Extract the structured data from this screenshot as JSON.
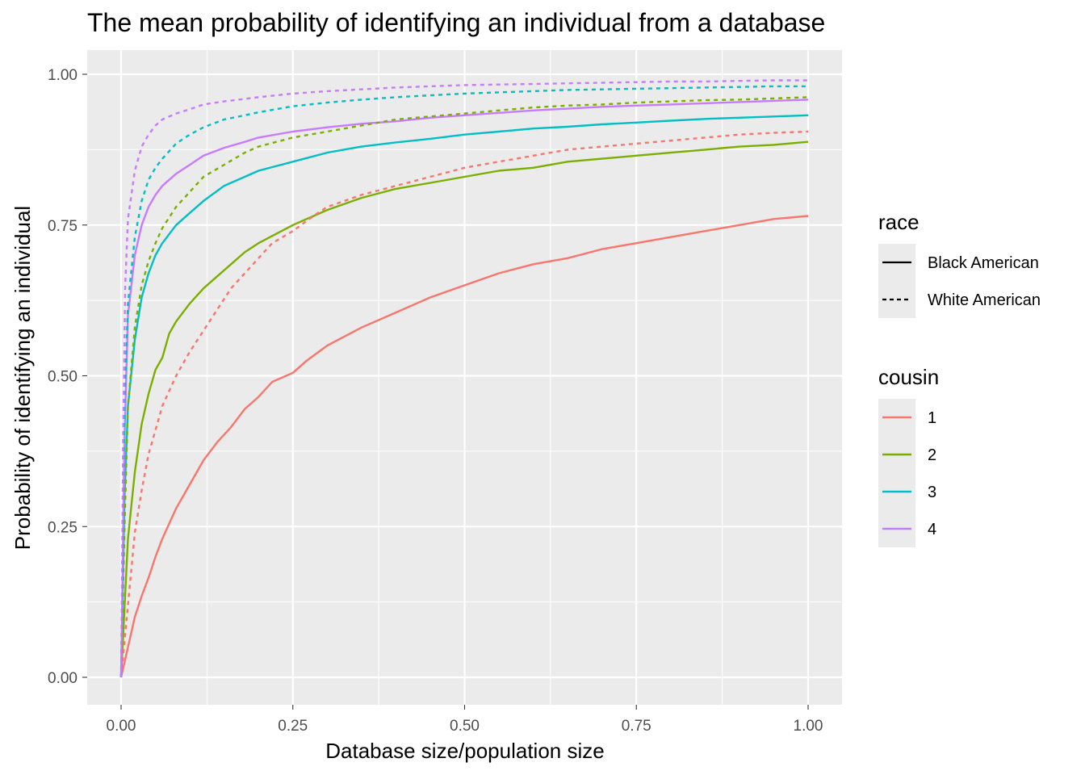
{
  "chart_data": {
    "type": "line",
    "title": "The mean probability of identifying an individual from a database",
    "xlabel": "Database size/population size",
    "ylabel": "Probability of identifying an individual",
    "xlim": [
      0,
      1
    ],
    "ylim": [
      0,
      1
    ],
    "x_ticks": [
      "0.00",
      "0.25",
      "0.50",
      "0.75",
      "1.00"
    ],
    "y_ticks": [
      "0.00",
      "0.25",
      "0.50",
      "0.75",
      "1.00"
    ],
    "grid": true,
    "legend_position": "right",
    "legends": {
      "race": {
        "title": "race",
        "entries": [
          {
            "label": "Black American",
            "linetype": "solid"
          },
          {
            "label": "White American",
            "linetype": "dashed"
          }
        ]
      },
      "cousin": {
        "title": "cousin",
        "entries": [
          {
            "label": "1",
            "color": "#F8766D"
          },
          {
            "label": "2",
            "color": "#7CAE00"
          },
          {
            "label": "3",
            "color": "#00BFC4"
          },
          {
            "label": "4",
            "color": "#C77CFF"
          }
        ]
      }
    },
    "series": [
      {
        "race": "Black American",
        "cousin": "1",
        "color": "#F8766D",
        "linetype": "solid",
        "points": [
          [
            0,
            0
          ],
          [
            0.01,
            0.05
          ],
          [
            0.02,
            0.1
          ],
          [
            0.03,
            0.135
          ],
          [
            0.04,
            0.165
          ],
          [
            0.05,
            0.2
          ],
          [
            0.06,
            0.23
          ],
          [
            0.08,
            0.28
          ],
          [
            0.1,
            0.32
          ],
          [
            0.12,
            0.36
          ],
          [
            0.14,
            0.39
          ],
          [
            0.16,
            0.415
          ],
          [
            0.18,
            0.445
          ],
          [
            0.2,
            0.465
          ],
          [
            0.22,
            0.49
          ],
          [
            0.25,
            0.505
          ],
          [
            0.27,
            0.525
          ],
          [
            0.3,
            0.55
          ],
          [
            0.35,
            0.58
          ],
          [
            0.4,
            0.605
          ],
          [
            0.45,
            0.63
          ],
          [
            0.5,
            0.65
          ],
          [
            0.55,
            0.67
          ],
          [
            0.6,
            0.685
          ],
          [
            0.65,
            0.695
          ],
          [
            0.7,
            0.71
          ],
          [
            0.75,
            0.72
          ],
          [
            0.8,
            0.73
          ],
          [
            0.85,
            0.74
          ],
          [
            0.9,
            0.75
          ],
          [
            0.95,
            0.76
          ],
          [
            1.0,
            0.765
          ]
        ]
      },
      {
        "race": "Black American",
        "cousin": "2",
        "color": "#7CAE00",
        "linetype": "solid",
        "points": [
          [
            0,
            0
          ],
          [
            0.01,
            0.23
          ],
          [
            0.02,
            0.34
          ],
          [
            0.03,
            0.42
          ],
          [
            0.04,
            0.47
          ],
          [
            0.05,
            0.51
          ],
          [
            0.06,
            0.53
          ],
          [
            0.07,
            0.57
          ],
          [
            0.08,
            0.59
          ],
          [
            0.1,
            0.62
          ],
          [
            0.12,
            0.645
          ],
          [
            0.15,
            0.675
          ],
          [
            0.18,
            0.705
          ],
          [
            0.2,
            0.72
          ],
          [
            0.25,
            0.75
          ],
          [
            0.3,
            0.775
          ],
          [
            0.35,
            0.795
          ],
          [
            0.4,
            0.81
          ],
          [
            0.45,
            0.82
          ],
          [
            0.5,
            0.83
          ],
          [
            0.55,
            0.84
          ],
          [
            0.6,
            0.845
          ],
          [
            0.65,
            0.855
          ],
          [
            0.7,
            0.86
          ],
          [
            0.75,
            0.865
          ],
          [
            0.8,
            0.87
          ],
          [
            0.85,
            0.875
          ],
          [
            0.9,
            0.88
          ],
          [
            0.95,
            0.883
          ],
          [
            1.0,
            0.888
          ]
        ]
      },
      {
        "race": "Black American",
        "cousin": "3",
        "color": "#00BFC4",
        "linetype": "solid",
        "points": [
          [
            0,
            0
          ],
          [
            0.005,
            0.3
          ],
          [
            0.01,
            0.45
          ],
          [
            0.02,
            0.56
          ],
          [
            0.03,
            0.63
          ],
          [
            0.04,
            0.67
          ],
          [
            0.05,
            0.7
          ],
          [
            0.06,
            0.72
          ],
          [
            0.08,
            0.75
          ],
          [
            0.1,
            0.77
          ],
          [
            0.12,
            0.79
          ],
          [
            0.15,
            0.815
          ],
          [
            0.18,
            0.83
          ],
          [
            0.2,
            0.84
          ],
          [
            0.25,
            0.855
          ],
          [
            0.3,
            0.87
          ],
          [
            0.35,
            0.88
          ],
          [
            0.4,
            0.887
          ],
          [
            0.45,
            0.893
          ],
          [
            0.5,
            0.9
          ],
          [
            0.55,
            0.905
          ],
          [
            0.6,
            0.91
          ],
          [
            0.65,
            0.913
          ],
          [
            0.7,
            0.917
          ],
          [
            0.75,
            0.92
          ],
          [
            0.8,
            0.923
          ],
          [
            0.85,
            0.926
          ],
          [
            0.9,
            0.928
          ],
          [
            0.95,
            0.93
          ],
          [
            1.0,
            0.932
          ]
        ]
      },
      {
        "race": "Black American",
        "cousin": "4",
        "color": "#C77CFF",
        "linetype": "solid",
        "points": [
          [
            0,
            0
          ],
          [
            0.005,
            0.4
          ],
          [
            0.01,
            0.6
          ],
          [
            0.02,
            0.7
          ],
          [
            0.03,
            0.75
          ],
          [
            0.04,
            0.78
          ],
          [
            0.05,
            0.8
          ],
          [
            0.06,
            0.815
          ],
          [
            0.08,
            0.835
          ],
          [
            0.1,
            0.85
          ],
          [
            0.12,
            0.865
          ],
          [
            0.15,
            0.878
          ],
          [
            0.18,
            0.888
          ],
          [
            0.2,
            0.895
          ],
          [
            0.25,
            0.905
          ],
          [
            0.3,
            0.912
          ],
          [
            0.35,
            0.918
          ],
          [
            0.4,
            0.922
          ],
          [
            0.45,
            0.928
          ],
          [
            0.5,
            0.932
          ],
          [
            0.55,
            0.936
          ],
          [
            0.6,
            0.94
          ],
          [
            0.65,
            0.943
          ],
          [
            0.7,
            0.946
          ],
          [
            0.75,
            0.948
          ],
          [
            0.8,
            0.95
          ],
          [
            0.85,
            0.952
          ],
          [
            0.9,
            0.954
          ],
          [
            0.95,
            0.956
          ],
          [
            1.0,
            0.958
          ]
        ]
      },
      {
        "race": "White American",
        "cousin": "1",
        "color": "#F8766D",
        "linetype": "dashed",
        "points": [
          [
            0,
            0
          ],
          [
            0.01,
            0.12
          ],
          [
            0.02,
            0.24
          ],
          [
            0.03,
            0.31
          ],
          [
            0.04,
            0.37
          ],
          [
            0.05,
            0.41
          ],
          [
            0.06,
            0.45
          ],
          [
            0.08,
            0.5
          ],
          [
            0.1,
            0.54
          ],
          [
            0.12,
            0.575
          ],
          [
            0.14,
            0.61
          ],
          [
            0.16,
            0.645
          ],
          [
            0.18,
            0.67
          ],
          [
            0.2,
            0.695
          ],
          [
            0.22,
            0.72
          ],
          [
            0.25,
            0.74
          ],
          [
            0.28,
            0.765
          ],
          [
            0.3,
            0.78
          ],
          [
            0.35,
            0.8
          ],
          [
            0.4,
            0.815
          ],
          [
            0.45,
            0.83
          ],
          [
            0.5,
            0.845
          ],
          [
            0.55,
            0.855
          ],
          [
            0.6,
            0.865
          ],
          [
            0.65,
            0.875
          ],
          [
            0.7,
            0.88
          ],
          [
            0.75,
            0.885
          ],
          [
            0.8,
            0.89
          ],
          [
            0.85,
            0.895
          ],
          [
            0.9,
            0.9
          ],
          [
            0.95,
            0.903
          ],
          [
            1.0,
            0.905
          ]
        ]
      },
      {
        "race": "White American",
        "cousin": "2",
        "color": "#7CAE00",
        "linetype": "dashed",
        "points": [
          [
            0,
            0
          ],
          [
            0.005,
            0.25
          ],
          [
            0.01,
            0.45
          ],
          [
            0.02,
            0.58
          ],
          [
            0.03,
            0.65
          ],
          [
            0.04,
            0.69
          ],
          [
            0.05,
            0.72
          ],
          [
            0.06,
            0.745
          ],
          [
            0.08,
            0.78
          ],
          [
            0.1,
            0.805
          ],
          [
            0.12,
            0.83
          ],
          [
            0.15,
            0.85
          ],
          [
            0.18,
            0.87
          ],
          [
            0.2,
            0.88
          ],
          [
            0.25,
            0.895
          ],
          [
            0.3,
            0.905
          ],
          [
            0.35,
            0.915
          ],
          [
            0.4,
            0.925
          ],
          [
            0.45,
            0.93
          ],
          [
            0.5,
            0.935
          ],
          [
            0.55,
            0.94
          ],
          [
            0.6,
            0.945
          ],
          [
            0.65,
            0.948
          ],
          [
            0.7,
            0.95
          ],
          [
            0.75,
            0.953
          ],
          [
            0.8,
            0.955
          ],
          [
            0.85,
            0.957
          ],
          [
            0.9,
            0.958
          ],
          [
            0.95,
            0.96
          ],
          [
            1.0,
            0.962
          ]
        ]
      },
      {
        "race": "White American",
        "cousin": "3",
        "color": "#00BFC4",
        "linetype": "dashed",
        "points": [
          [
            0,
            0
          ],
          [
            0.005,
            0.45
          ],
          [
            0.01,
            0.62
          ],
          [
            0.02,
            0.73
          ],
          [
            0.03,
            0.79
          ],
          [
            0.04,
            0.825
          ],
          [
            0.05,
            0.845
          ],
          [
            0.06,
            0.86
          ],
          [
            0.08,
            0.885
          ],
          [
            0.1,
            0.9
          ],
          [
            0.12,
            0.912
          ],
          [
            0.15,
            0.925
          ],
          [
            0.18,
            0.932
          ],
          [
            0.2,
            0.937
          ],
          [
            0.25,
            0.947
          ],
          [
            0.3,
            0.953
          ],
          [
            0.35,
            0.958
          ],
          [
            0.4,
            0.962
          ],
          [
            0.45,
            0.965
          ],
          [
            0.5,
            0.968
          ],
          [
            0.55,
            0.97
          ],
          [
            0.6,
            0.972
          ],
          [
            0.65,
            0.974
          ],
          [
            0.7,
            0.975
          ],
          [
            0.75,
            0.976
          ],
          [
            0.8,
            0.977
          ],
          [
            0.85,
            0.978
          ],
          [
            0.9,
            0.979
          ],
          [
            0.95,
            0.98
          ],
          [
            1.0,
            0.98
          ]
        ]
      },
      {
        "race": "White American",
        "cousin": "4",
        "color": "#C77CFF",
        "linetype": "dashed",
        "points": [
          [
            0,
            0
          ],
          [
            0.003,
            0.4
          ],
          [
            0.006,
            0.65
          ],
          [
            0.01,
            0.76
          ],
          [
            0.02,
            0.84
          ],
          [
            0.03,
            0.88
          ],
          [
            0.04,
            0.9
          ],
          [
            0.05,
            0.915
          ],
          [
            0.06,
            0.925
          ],
          [
            0.08,
            0.935
          ],
          [
            0.1,
            0.942
          ],
          [
            0.12,
            0.95
          ],
          [
            0.15,
            0.955
          ],
          [
            0.2,
            0.962
          ],
          [
            0.25,
            0.968
          ],
          [
            0.3,
            0.972
          ],
          [
            0.35,
            0.975
          ],
          [
            0.4,
            0.978
          ],
          [
            0.45,
            0.98
          ],
          [
            0.5,
            0.982
          ],
          [
            0.55,
            0.983
          ],
          [
            0.6,
            0.984
          ],
          [
            0.65,
            0.985
          ],
          [
            0.7,
            0.986
          ],
          [
            0.75,
            0.987
          ],
          [
            0.8,
            0.988
          ],
          [
            0.85,
            0.988
          ],
          [
            0.9,
            0.989
          ],
          [
            0.95,
            0.99
          ],
          [
            1.0,
            0.99
          ]
        ]
      }
    ]
  }
}
